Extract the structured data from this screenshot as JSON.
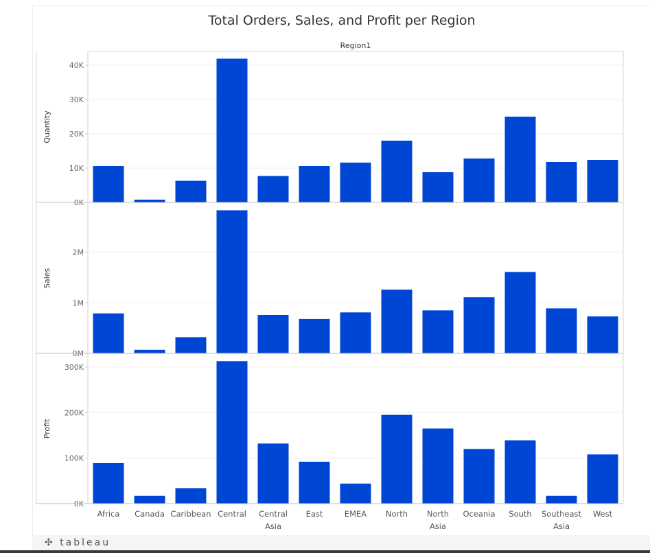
{
  "title": "Total Orders, Sales, and Profit per Region",
  "footer": {
    "logo_text": "tableau"
  },
  "chart_data": {
    "type": "bar",
    "title": "Total Orders, Sales, and Profit per Region",
    "column_header": "Region1",
    "bar_color": "#0046D5",
    "grid": true,
    "categories": [
      [
        "Africa"
      ],
      [
        "Canada"
      ],
      [
        "Caribbean"
      ],
      [
        "Central"
      ],
      [
        "Central",
        "Asia"
      ],
      [
        "East"
      ],
      [
        "EMEA"
      ],
      [
        "North"
      ],
      [
        "North",
        "Asia"
      ],
      [
        "Oceania"
      ],
      [
        "South"
      ],
      [
        "Southeast",
        "Asia"
      ],
      [
        "West"
      ]
    ],
    "panels": [
      {
        "ylabel": "Quantity",
        "ylim": [
          0,
          42000
        ],
        "ticks": [
          0,
          10000,
          20000,
          30000,
          40000
        ],
        "tick_labels": [
          "0K",
          "10K",
          "20K",
          "30K",
          "40K"
        ],
        "values": [
          10600,
          800,
          6300,
          41900,
          7700,
          10600,
          11600,
          18000,
          8800,
          12800,
          25000,
          11800,
          12400
        ]
      },
      {
        "ylabel": "Sales",
        "ylim": [
          0,
          2850000
        ],
        "ticks": [
          0,
          1000000,
          2000000
        ],
        "tick_labels": [
          "0M",
          "1M",
          "2M"
        ],
        "values": [
          790000,
          70000,
          320000,
          2830000,
          760000,
          680000,
          810000,
          1260000,
          850000,
          1110000,
          1610000,
          890000,
          730000
        ]
      },
      {
        "ylabel": "Profit",
        "ylim": [
          0,
          315000
        ],
        "ticks": [
          0,
          100000,
          200000,
          300000
        ],
        "tick_labels": [
          "0K",
          "100K",
          "200K",
          "300K"
        ],
        "values": [
          89000,
          17000,
          34000,
          313000,
          132000,
          92000,
          44000,
          195000,
          165000,
          120000,
          139000,
          17000,
          108000
        ]
      }
    ]
  }
}
